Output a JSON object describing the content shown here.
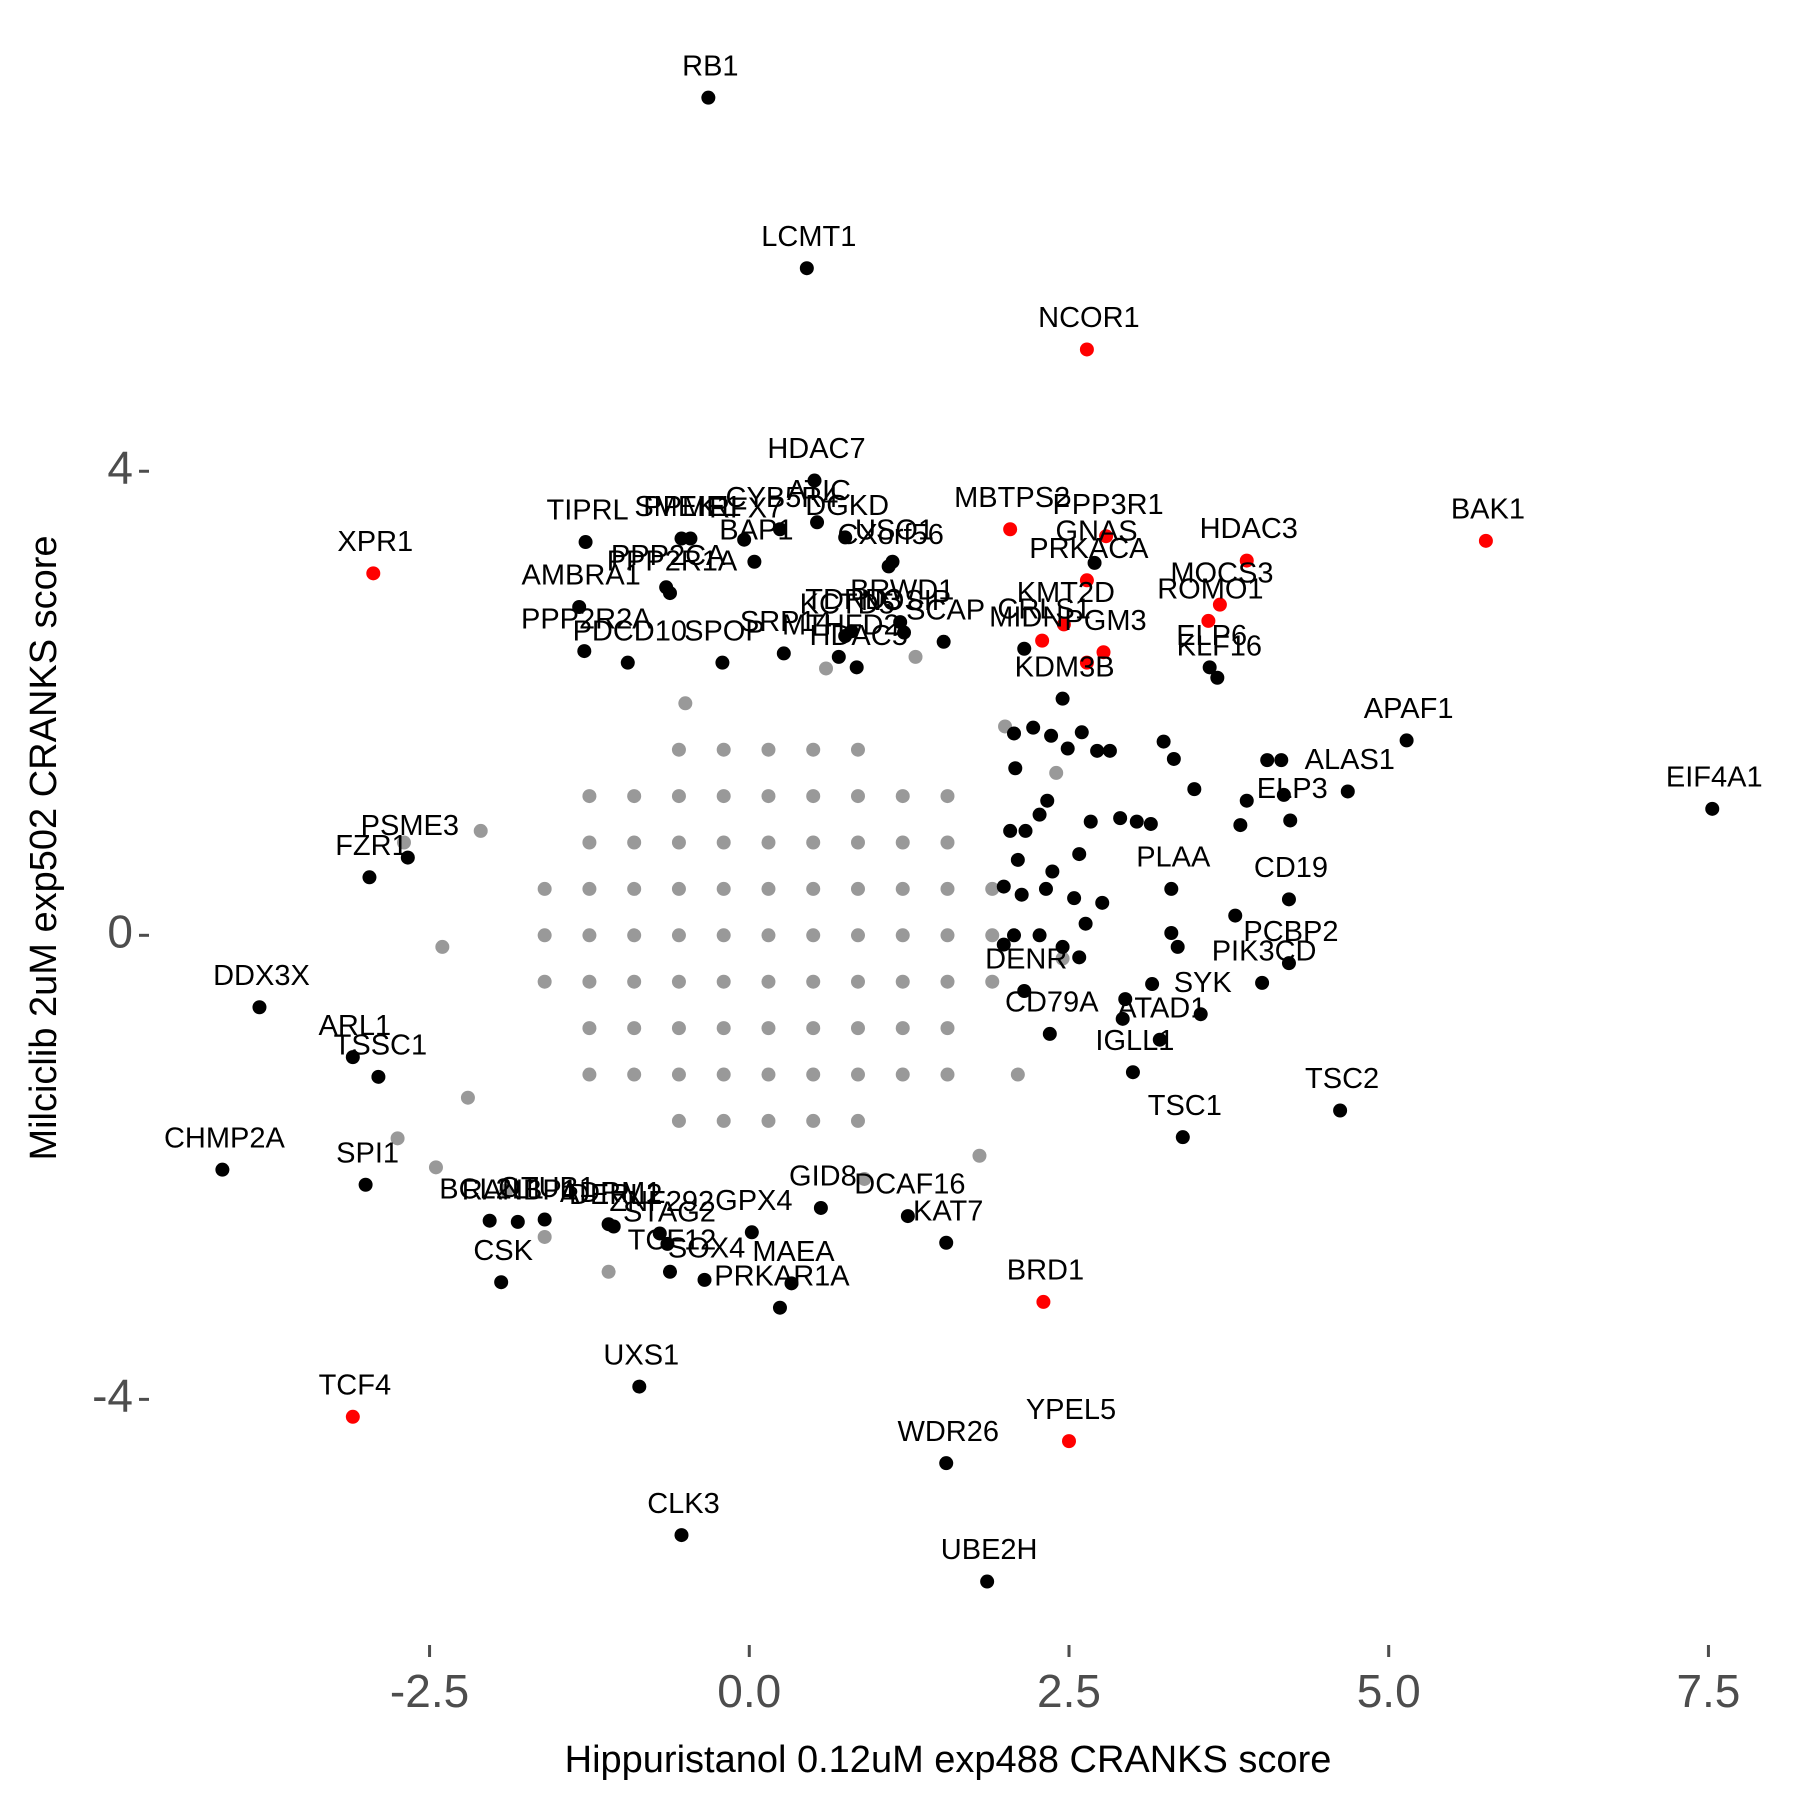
{
  "chart_data": {
    "type": "scatter",
    "xlabel": "Hippuristanol 0.12uM exp488 CRANKS score",
    "ylabel": "Milciclib 2uM exp502 CRANKS score",
    "xlim": [
      -4.6,
      7.7
    ],
    "ylim": [
      -6.1,
      7.7
    ],
    "xticks": [
      -2.5,
      {
        "value": 0,
        "label": "0.0"
      },
      2.5,
      {
        "value": 5,
        "label": "5.0"
      },
      7.5
    ],
    "yticks": [
      -4,
      0,
      4
    ],
    "series": [
      {
        "color": "#999999",
        "x": [
          -1.6,
          -1.25,
          -0.9,
          -0.55,
          -0.2,
          0.15,
          0.5,
          0.85,
          1.2,
          1.55,
          1.9,
          -1.6,
          -1.25,
          -0.9,
          -0.55,
          -0.2,
          0.15,
          0.5,
          0.85,
          1.2,
          1.55,
          1.9,
          -1.6,
          -1.25,
          -0.9,
          -0.55,
          -0.2,
          0.15,
          0.5,
          0.85,
          1.2,
          1.55,
          1.9,
          -1.25,
          -0.9,
          -0.55,
          -0.2,
          0.15,
          0.5,
          0.85,
          1.2,
          1.55,
          -1.25,
          -0.9,
          -0.55,
          -0.2,
          0.15,
          0.5,
          0.85,
          1.2,
          1.55,
          -1.25,
          -0.9,
          -0.55,
          -0.2,
          0.15,
          0.5,
          0.85,
          1.2,
          1.55,
          -1.25,
          -0.9,
          -0.55,
          -0.2,
          0.15,
          0.5,
          0.85,
          1.2,
          1.55,
          -0.55,
          -0.2,
          0.15,
          0.5,
          0.85,
          -0.55,
          -0.2,
          0.15,
          0.5,
          0.85,
          -2.4,
          -2.1,
          -2.2,
          -2.75,
          -2.45,
          -1.9,
          -1.6,
          -1.1,
          2.0,
          2.4,
          2.1,
          1.8,
          0.9,
          -0.5,
          0.6,
          1.3,
          -2.7,
          2.45
        ],
        "values": [
          0,
          0,
          0,
          0,
          0,
          0,
          0,
          0,
          0,
          0,
          0,
          0.4,
          0.4,
          0.4,
          0.4,
          0.4,
          0.4,
          0.4,
          0.4,
          0.4,
          0.4,
          0.4,
          -0.4,
          -0.4,
          -0.4,
          -0.4,
          -0.4,
          -0.4,
          -0.4,
          -0.4,
          -0.4,
          -0.4,
          -0.4,
          0.8,
          0.8,
          0.8,
          0.8,
          0.8,
          0.8,
          0.8,
          0.8,
          0.8,
          -0.8,
          -0.8,
          -0.8,
          -0.8,
          -0.8,
          -0.8,
          -0.8,
          -0.8,
          -0.8,
          1.2,
          1.2,
          1.2,
          1.2,
          1.2,
          1.2,
          1.2,
          1.2,
          1.2,
          -1.2,
          -1.2,
          -1.2,
          -1.2,
          -1.2,
          -1.2,
          -1.2,
          -1.2,
          -1.2,
          1.6,
          1.6,
          1.6,
          1.6,
          1.6,
          -1.6,
          -1.6,
          -1.6,
          -1.6,
          -1.6,
          -0.1,
          0.9,
          -1.4,
          -1.75,
          -2.0,
          -2.2,
          -2.6,
          -2.9,
          1.8,
          1.4,
          -1.2,
          -1.9,
          -2.1,
          2.0,
          2.3,
          2.4,
          0.8,
          -0.2
        ]
      },
      {
        "color": "#000000",
        "x": [
          2.07,
          2.22,
          2.36,
          2.6,
          2.49,
          2.72,
          2.82,
          3.24,
          3.32,
          4.05,
          4.16,
          3.48,
          3.89,
          3.84,
          4.18,
          2.08,
          2.33,
          2.16,
          2.27,
          2.04,
          2.67,
          2.9,
          3.03,
          3.14,
          2.1,
          2.37,
          2.58,
          1.99,
          2.13,
          2.32,
          2.54,
          2.76,
          2.63,
          2.07,
          2.27,
          2.45,
          2.58,
          1.99,
          3.8,
          3.3,
          3.35,
          3.15,
          2.94,
          2.92
        ],
        "values": [
          1.74,
          1.79,
          1.72,
          1.75,
          1.61,
          1.59,
          1.59,
          1.67,
          1.52,
          1.51,
          1.51,
          1.26,
          1.16,
          0.95,
          1.21,
          1.44,
          1.16,
          0.9,
          1.04,
          0.9,
          0.98,
          1.01,
          0.98,
          0.96,
          0.65,
          0.55,
          0.7,
          0.42,
          0.35,
          0.4,
          0.32,
          0.28,
          0.1,
          0,
          0,
          -0.1,
          -0.19,
          -0.08,
          0.17,
          0.02,
          -0.1,
          -0.42,
          -0.55,
          -0.72
        ]
      },
      {
        "color": "#ff0000",
        "x": [
          2.64
        ],
        "values": [
          2.35
        ]
      },
      {
        "color": "#000000",
        "labels": [
          "RB1",
          "LCMT1",
          "HDAC7",
          "DGKD",
          "ATIC",
          "RFX7",
          "CXorf56",
          "USO1",
          "GNAS",
          "KLF16",
          "KDM3B",
          "ELP6",
          "APAF1",
          "ALAS1",
          "EIF4A1",
          "ELP3",
          "PLAA",
          "CD19",
          "PCBP2",
          "PIK3CD",
          "SYK",
          "ATAD1",
          "CD79A",
          "DENR",
          "IGLL1",
          "TSC1",
          "TSC2",
          "GID8",
          "DCAF16",
          "KAT7",
          "MAEA",
          "PRKAR1A",
          "SOX4",
          "TCF12",
          "STAG2",
          "GPX4",
          "WDR26",
          "UBE2H",
          "CLK3",
          "UXS1",
          "CSK",
          "OTUB1",
          "RANBP1",
          "BCL2L1",
          "ADRM1",
          "ZNF292",
          "DERL2",
          "SPI1",
          "CHMP2A",
          "TSSC1",
          "ARL1",
          "DDX3X",
          "FZR1",
          "PSME3",
          "PDCD10",
          "PPP2R2A",
          "AMBRA1",
          "TIPRL",
          "SMEK1",
          "PPME1",
          "CYB5R4",
          "BAP1",
          "PPP2CA",
          "PPP2R1A",
          "SPOP",
          "SRP14",
          "TDRD3",
          "KCTD5",
          "HDAC5",
          "MTHFD2",
          "BRWD1",
          "SCAP",
          "MIDN",
          "NOSIP"
        ],
        "x": [
          -0.32,
          0.45,
          0.51,
          0.75,
          0.53,
          -0.04,
          1.09,
          1.12,
          2.7,
          3.66,
          2.45,
          3.6,
          5.14,
          4.68,
          7.53,
          4.23,
          3.3,
          4.22,
          4.22,
          4.01,
          3.53,
          3.21,
          2.35,
          2.15,
          3.0,
          3.39,
          4.62,
          0.56,
          1.24,
          1.54,
          0.33,
          0.24,
          -0.35,
          -0.62,
          -0.64,
          0.02,
          1.54,
          1.86,
          -0.53,
          -0.86,
          -1.94,
          -1.6,
          -1.81,
          -2.03,
          -1.1,
          -0.7,
          -1.06,
          -3.0,
          -4.12,
          -2.9,
          -3.1,
          -3.83,
          -2.97,
          -2.67,
          -0.95,
          -1.29,
          -1.33,
          -1.28,
          -0.53,
          -0.46,
          0.24,
          0.04,
          -0.65,
          -0.62,
          -0.21,
          0.27,
          0.8,
          0.75,
          0.84,
          0.7,
          1.18,
          1.52,
          2.15,
          1.21
        ],
        "values": [
          7.22,
          5.75,
          3.92,
          3.43,
          3.56,
          3.41,
          3.18,
          3.22,
          3.21,
          2.22,
          2.04,
          2.31,
          1.68,
          1.24,
          1.09,
          0.99,
          0.4,
          0.31,
          -0.24,
          -0.41,
          -0.68,
          -0.9,
          -0.85,
          -0.48,
          -1.18,
          -1.74,
          -1.51,
          -2.35,
          -2.42,
          -2.65,
          -3.0,
          -3.21,
          -2.97,
          -2.9,
          -2.66,
          -2.56,
          -4.55,
          -5.57,
          -5.17,
          -3.89,
          -2.99,
          -2.45,
          -2.47,
          -2.46,
          -2.49,
          -2.57,
          -2.51,
          -2.15,
          -2.02,
          -1.22,
          -1.05,
          -0.62,
          0.5,
          0.67,
          2.35,
          2.45,
          2.83,
          3.39,
          3.42,
          3.42,
          3.5,
          3.22,
          3.0,
          2.95,
          2.35,
          2.43,
          2.62,
          2.58,
          2.31,
          2.4,
          2.7,
          2.53,
          2.47,
          2.61
        ]
      },
      {
        "color": "#ff0000",
        "labels": [
          "NCOR1",
          "MBTPS2",
          "PPP3R1",
          "HDAC3",
          "BAK1",
          "KMT2D",
          "PRKACA",
          "MOCS3",
          "ROMO1",
          "PGM3",
          "CRLS1",
          "XPR1",
          "BRD1",
          "YPEL5",
          "TCF4"
        ],
        "x": [
          2.64,
          2.04,
          2.79,
          3.89,
          5.76,
          2.46,
          2.64,
          3.68,
          3.59,
          2.77,
          2.29,
          -2.94,
          2.3,
          2.5,
          -3.1
        ],
        "values": [
          5.05,
          3.5,
          3.44,
          3.23,
          3.4,
          2.68,
          3.06,
          2.85,
          2.71,
          2.44,
          2.54,
          3.12,
          -3.16,
          -4.36,
          -4.15
        ]
      }
    ]
  }
}
